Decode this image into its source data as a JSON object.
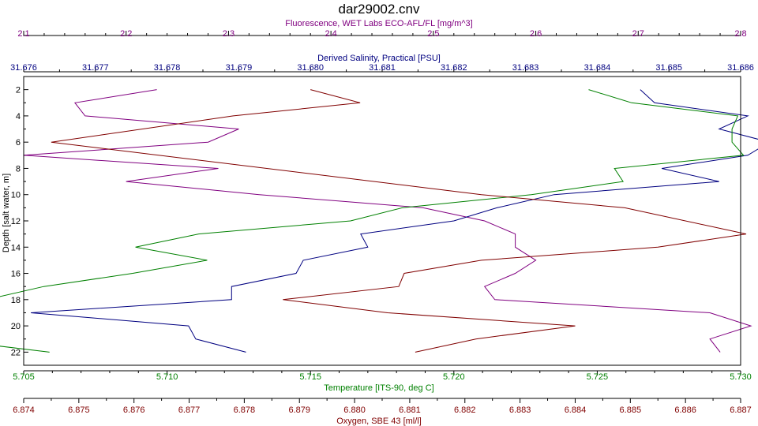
{
  "chart_data": {
    "type": "line",
    "title": "dar29002.cnv",
    "y_axis": {
      "label": "Depth [salt water, m]",
      "range": [
        1.0,
        23.0
      ],
      "ticks": [
        "2",
        "4",
        "6",
        "8",
        "10",
        "12",
        "14",
        "16",
        "18",
        "20",
        "22"
      ],
      "inverted": true
    },
    "axes": [
      {
        "id": "fluorescence",
        "label": "Fluorescence, WET Labs ECO-AFL/FL [mg/m^3]",
        "position": "top-outer",
        "color": "#800080",
        "range": [
          2.1,
          2.8
        ],
        "tick_values": [
          2.1,
          2.2,
          2.3,
          2.4,
          2.5,
          2.6,
          2.7,
          2.8
        ],
        "ticks": [
          "2.1",
          "2.2",
          "2.3",
          "2.4",
          "2.5",
          "2.6",
          "2.7",
          "2.8"
        ],
        "minor_per_major": 4
      },
      {
        "id": "salinity",
        "label": "Derived Salinity, Practical [PSU]",
        "position": "top-inner",
        "color": "#000080",
        "range": [
          31.676,
          31.686
        ],
        "tick_values": [
          31.676,
          31.677,
          31.678,
          31.679,
          31.68,
          31.681,
          31.682,
          31.683,
          31.684,
          31.685,
          31.686
        ],
        "ticks": [
          "31.676",
          "31.677",
          "31.678",
          "31.679",
          "31.680",
          "31.681",
          "31.682",
          "31.683",
          "31.684",
          "31.685",
          "31.686"
        ],
        "minor_per_major": 1
      },
      {
        "id": "temperature",
        "label": "Temperature [ITS-90, deg C]",
        "position": "bottom-inner",
        "color": "#008000",
        "range": [
          5.705,
          5.73
        ],
        "tick_values": [
          5.705,
          5.71,
          5.715,
          5.72,
          5.725,
          5.73
        ],
        "ticks": [
          "5.705",
          "5.710",
          "5.715",
          "5.720",
          "5.725",
          "5.730"
        ],
        "minor_per_major": 4
      },
      {
        "id": "oxygen",
        "label": "Oxygen, SBE 43 [ml/l]",
        "position": "bottom-outer",
        "color": "#800000",
        "range": [
          6.874,
          6.887
        ],
        "tick_values": [
          6.874,
          6.875,
          6.876,
          6.877,
          6.878,
          6.879,
          6.88,
          6.881,
          6.882,
          6.883,
          6.884,
          6.885,
          6.886,
          6.887
        ],
        "ticks": [
          "6.874",
          "6.875",
          "6.876",
          "6.877",
          "6.878",
          "6.879",
          "6.880",
          "6.881",
          "6.882",
          "6.883",
          "6.884",
          "6.885",
          "6.886",
          "6.887"
        ],
        "minor_per_major": 1
      }
    ],
    "series": [
      {
        "axis": "fluorescence",
        "color": "#800080",
        "points": [
          [
            2.23,
            2
          ],
          [
            2.15,
            3
          ],
          [
            2.16,
            4
          ],
          [
            2.31,
            5
          ],
          [
            2.28,
            6
          ],
          [
            2.1,
            7
          ],
          [
            2.29,
            8
          ],
          [
            2.2,
            9
          ],
          [
            2.33,
            10
          ],
          [
            2.49,
            11
          ],
          [
            2.55,
            12
          ],
          [
            2.58,
            13
          ],
          [
            2.58,
            14
          ],
          [
            2.6,
            15
          ],
          [
            2.58,
            16
          ],
          [
            2.55,
            17
          ],
          [
            2.56,
            18
          ],
          [
            2.77,
            19
          ],
          [
            2.81,
            20
          ],
          [
            2.77,
            21
          ],
          [
            2.78,
            22
          ]
        ]
      },
      {
        "axis": "salinity",
        "color": "#000080",
        "points": [
          [
            31.6846,
            2
          ],
          [
            31.6848,
            3
          ],
          [
            31.6861,
            4
          ],
          [
            31.6857,
            5
          ],
          [
            31.6864,
            6
          ],
          [
            31.6861,
            7
          ],
          [
            31.6849,
            8
          ],
          [
            31.6857,
            9
          ],
          [
            31.6834,
            10
          ],
          [
            31.6826,
            11
          ],
          [
            31.682,
            12
          ],
          [
            31.6807,
            13
          ],
          [
            31.6808,
            14
          ],
          [
            31.6799,
            15
          ],
          [
            31.6798,
            16
          ],
          [
            31.6789,
            17
          ],
          [
            31.6789,
            18
          ],
          [
            31.6761,
            19
          ],
          [
            31.6783,
            20
          ],
          [
            31.6784,
            21
          ],
          [
            31.6791,
            22
          ]
        ]
      },
      {
        "axis": "temperature",
        "color": "#008000",
        "points": [
          [
            5.7247,
            2
          ],
          [
            5.7262,
            3
          ],
          [
            5.7299,
            4
          ],
          [
            5.7297,
            5
          ],
          [
            5.7297,
            6
          ],
          [
            5.7301,
            7
          ],
          [
            5.7256,
            8
          ],
          [
            5.7259,
            9
          ],
          [
            5.7227,
            10
          ],
          [
            5.7182,
            11
          ],
          [
            5.7164,
            12
          ],
          [
            5.7111,
            13
          ],
          [
            5.7089,
            14
          ],
          [
            5.7114,
            15
          ],
          [
            5.7088,
            16
          ],
          [
            5.7057,
            17
          ],
          [
            5.7037,
            18
          ],
          [
            5.7029,
            19
          ],
          [
            5.7021,
            20
          ],
          [
            5.7021,
            21
          ],
          [
            5.7059,
            22
          ]
        ]
      },
      {
        "axis": "oxygen",
        "color": "#800000",
        "points": [
          [
            6.8792,
            2
          ],
          [
            6.8801,
            3
          ],
          [
            6.8778,
            4
          ],
          [
            6.8745,
            6
          ],
          [
            6.8823,
            10
          ],
          [
            6.8849,
            11
          ],
          [
            6.8871,
            13
          ],
          [
            6.8855,
            14
          ],
          [
            6.8823,
            15
          ],
          [
            6.8809,
            16
          ],
          [
            6.8808,
            17
          ],
          [
            6.8787,
            18
          ],
          [
            6.8806,
            19
          ],
          [
            6.884,
            20
          ],
          [
            6.8822,
            21
          ],
          [
            6.8811,
            22
          ]
        ]
      }
    ],
    "grid": false,
    "legend": "none"
  }
}
